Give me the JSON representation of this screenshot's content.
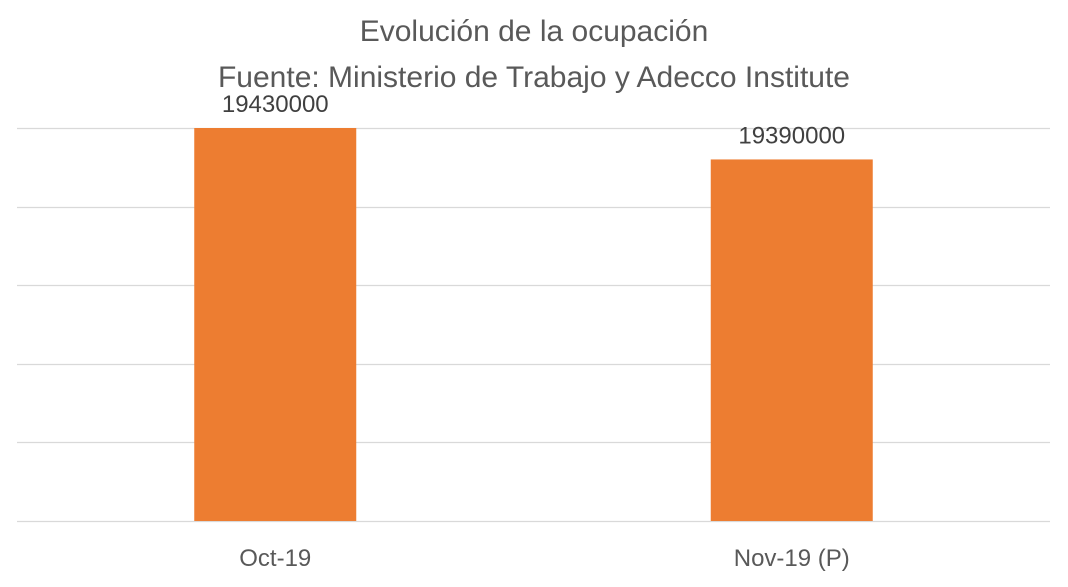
{
  "chart_data": {
    "type": "bar",
    "title": "Evolución de la ocupación",
    "subtitle": "Fuente: Ministerio de Trabajo y Adecco Institute",
    "categories": [
      "Oct-19",
      "Nov-19 (P)"
    ],
    "values": [
      19430000,
      19390000
    ],
    "data_labels": [
      "19430000",
      "19390000"
    ],
    "xlabel": "",
    "ylabel": "",
    "ylim": [
      18930000,
      19430000
    ],
    "y_gridlines": [
      18930000,
      19030000,
      19130000,
      19230000,
      19330000,
      19430000
    ],
    "y_tick_labels_visible": false,
    "grid": true,
    "legend": "none",
    "bar_color": "#ED7D31",
    "grid_color": "#D9D9D9",
    "text_color": "#595959"
  }
}
